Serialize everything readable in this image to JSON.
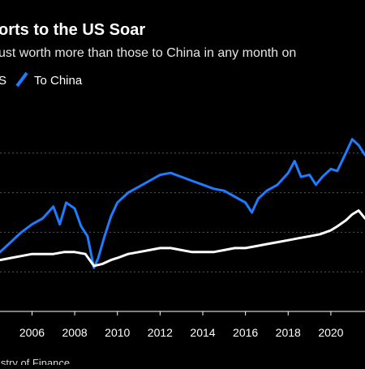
{
  "header": {
    "title": "orts to the US Soar",
    "subtitle": "ust worth more than those to China in any month on"
  },
  "legend": {
    "items": [
      {
        "label": "S",
        "color": "#ffffff"
      },
      {
        "label": "To China",
        "color": "#1f7cff"
      }
    ]
  },
  "footer": {
    "source": "istry of Finance"
  },
  "chart_data": {
    "type": "line",
    "title": "orts to the US Soar",
    "xlabel": "",
    "ylabel": "",
    "xlim": [
      2004.5,
      2021.6
    ],
    "ylim": [
      0,
      100
    ],
    "grid": true,
    "legend_position": "top-left",
    "x_ticks": [
      2006,
      2008,
      2010,
      2012,
      2014,
      2016,
      2018,
      2020
    ],
    "x_tick_labels": [
      "2006",
      "2008",
      "2010",
      "2012",
      "2014",
      "2016",
      "2018",
      "2020"
    ],
    "y_gridlines": [
      20,
      40,
      60,
      80
    ],
    "series": [
      {
        "name": "To China",
        "color": "#1f7cff",
        "points": [
          [
            2004.5,
            30
          ],
          [
            2005.0,
            35
          ],
          [
            2005.5,
            40
          ],
          [
            2006.0,
            44
          ],
          [
            2006.5,
            47
          ],
          [
            2007.0,
            53
          ],
          [
            2007.3,
            44
          ],
          [
            2007.6,
            55
          ],
          [
            2008.0,
            52
          ],
          [
            2008.3,
            43
          ],
          [
            2008.6,
            38
          ],
          [
            2008.9,
            22
          ],
          [
            2009.1,
            27
          ],
          [
            2009.4,
            38
          ],
          [
            2009.7,
            48
          ],
          [
            2010.0,
            55
          ],
          [
            2010.5,
            60
          ],
          [
            2011.0,
            63
          ],
          [
            2011.5,
            66
          ],
          [
            2012.0,
            69
          ],
          [
            2012.5,
            70
          ],
          [
            2013.0,
            68
          ],
          [
            2013.5,
            66
          ],
          [
            2014.0,
            64
          ],
          [
            2014.5,
            62
          ],
          [
            2015.0,
            61
          ],
          [
            2015.5,
            58
          ],
          [
            2016.0,
            55
          ],
          [
            2016.3,
            50
          ],
          [
            2016.6,
            57
          ],
          [
            2017.0,
            61
          ],
          [
            2017.5,
            64
          ],
          [
            2018.0,
            70
          ],
          [
            2018.3,
            76
          ],
          [
            2018.6,
            68
          ],
          [
            2019.0,
            69
          ],
          [
            2019.3,
            64
          ],
          [
            2019.6,
            68
          ],
          [
            2020.0,
            72
          ],
          [
            2020.3,
            71
          ],
          [
            2020.7,
            80
          ],
          [
            2021.0,
            87
          ],
          [
            2021.3,
            84
          ],
          [
            2021.6,
            79
          ]
        ]
      },
      {
        "name": "S",
        "color": "#ffffff",
        "points": [
          [
            2004.5,
            26
          ],
          [
            2005.0,
            27
          ],
          [
            2005.5,
            28
          ],
          [
            2006.0,
            29
          ],
          [
            2006.5,
            29
          ],
          [
            2007.0,
            29
          ],
          [
            2007.5,
            30
          ],
          [
            2008.0,
            30
          ],
          [
            2008.5,
            29
          ],
          [
            2008.9,
            23
          ],
          [
            2009.3,
            24
          ],
          [
            2009.7,
            26
          ],
          [
            2010.0,
            27
          ],
          [
            2010.5,
            29
          ],
          [
            2011.0,
            30
          ],
          [
            2011.5,
            31
          ],
          [
            2012.0,
            32
          ],
          [
            2012.5,
            32
          ],
          [
            2013.0,
            31
          ],
          [
            2013.5,
            30
          ],
          [
            2014.0,
            30
          ],
          [
            2014.5,
            30
          ],
          [
            2015.0,
            31
          ],
          [
            2015.5,
            32
          ],
          [
            2016.0,
            32
          ],
          [
            2016.5,
            33
          ],
          [
            2017.0,
            34
          ],
          [
            2017.5,
            35
          ],
          [
            2018.0,
            36
          ],
          [
            2018.5,
            37
          ],
          [
            2019.0,
            38
          ],
          [
            2019.5,
            39
          ],
          [
            2020.0,
            41
          ],
          [
            2020.3,
            43
          ],
          [
            2020.7,
            46
          ],
          [
            2021.0,
            49
          ],
          [
            2021.3,
            51
          ],
          [
            2021.6,
            47
          ]
        ]
      }
    ]
  }
}
